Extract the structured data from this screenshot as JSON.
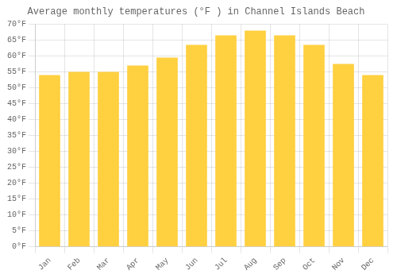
{
  "chart_data": {
    "type": "bar",
    "title": "Average monthly temperatures (°F ) in Channel Islands Beach",
    "categories": [
      "Jan",
      "Feb",
      "Mar",
      "Apr",
      "May",
      "Jun",
      "Jul",
      "Aug",
      "Sep",
      "Oct",
      "Nov",
      "Dec"
    ],
    "values": [
      54,
      55,
      55,
      57,
      59.5,
      63.5,
      66.5,
      68,
      66.5,
      63.5,
      57.5,
      54
    ],
    "color": "#FFD040",
    "ylim": [
      0,
      70
    ],
    "yticks": [
      {
        "value": 0,
        "label": "0°F"
      },
      {
        "value": 5,
        "label": "5°F"
      },
      {
        "value": 10,
        "label": "10°F"
      },
      {
        "value": 15,
        "label": "15°F"
      },
      {
        "value": 20,
        "label": "20°F"
      },
      {
        "value": 25,
        "label": "25°F"
      },
      {
        "value": 30,
        "label": "30°F"
      },
      {
        "value": 35,
        "label": "35°F"
      },
      {
        "value": 40,
        "label": "40°F"
      },
      {
        "value": 45,
        "label": "45°F"
      },
      {
        "value": 50,
        "label": "50°F"
      },
      {
        "value": 55,
        "label": "55°F"
      },
      {
        "value": 60,
        "label": "60°F"
      },
      {
        "value": 65,
        "label": "65°F"
      },
      {
        "value": 70,
        "label": "70°F"
      }
    ],
    "grid": true
  }
}
